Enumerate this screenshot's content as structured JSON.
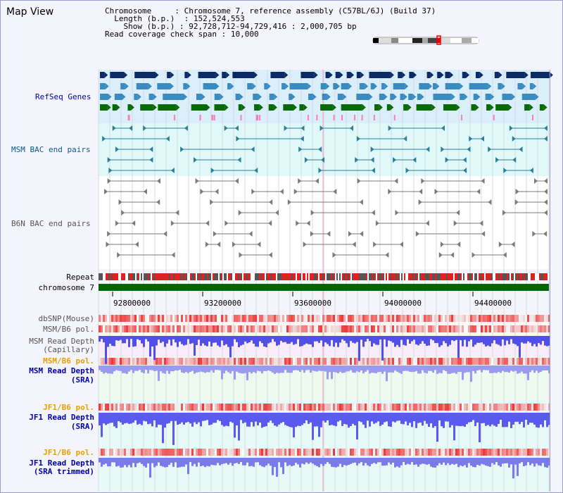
{
  "title": "Map View",
  "info": {
    "chromosome_label": "Chromosome",
    "chromosome_value": "Chromosome 7, reference assembly (C57BL/6J) (Build 37)",
    "length_label": "Length (b.p.)",
    "length_value": "152,524,553",
    "show_label": "Show (b.p.)",
    "show_value": "92,728,712-94,729,416 : 2,000,705 bp",
    "coverage_label": "Read coverage check span",
    "coverage_value": "10,000"
  },
  "tracks": {
    "refseq": "RefSeq Genes",
    "msm_bac": "MSM BAC end pairs",
    "b6n_bac": "B6N BAC end pairs",
    "repeat": "Repeat",
    "chromosome": "chromosome 7",
    "dbsnp": "dbSNP(Mouse)",
    "msm_b6_pol_1": "MSM/B6 pol.",
    "msm_read_depth_cap_1": "MSM Read Depth",
    "msm_read_depth_cap_2": "(Capillary)",
    "msm_b6_pol_2": "MSM/B6 pol.",
    "msm_read_depth_sra_1": "MSM Read Depth",
    "msm_read_depth_sra_2": "(SRA)",
    "jf1_b6_pol_1": "JF1/B6 pol.",
    "jf1_read_depth_sra_1": "JF1 Read Depth",
    "jf1_read_depth_sra_2": "(SRA)",
    "jf1_b6_pol_2": "JF1/B6 pol.",
    "jf1_read_depth_trim_1": "JF1 Read Depth",
    "jf1_read_depth_trim_2": "(SRA trimmed)"
  },
  "axis_ticks": [
    "92800000",
    "93200000",
    "93600000",
    "94000000",
    "94400000"
  ],
  "colors": {
    "refseq_bg": "#dbeffa",
    "bac_bg": "#e0f8f8",
    "navy": "#0c2a66",
    "steel": "#3a8bc0",
    "green": "#0a6a0a",
    "teal": "#2a7f9a",
    "gray": "#7a7a7a",
    "pink": "#f080c0",
    "repeat_red": "#dd2222",
    "chromosome_green": "#006600",
    "depth_blue": "#5a5af0",
    "label_blue": "#0000aa",
    "label_orange": "#e8a000",
    "label_teal": "#0a5a8a"
  }
}
